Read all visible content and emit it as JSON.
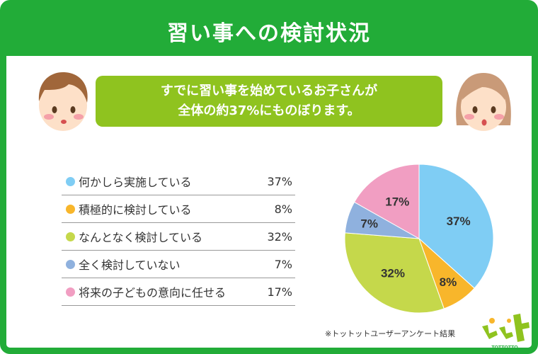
{
  "header": {
    "title": "習い事への検討状況"
  },
  "banner": {
    "line1": "すでに習い事を始めているお子さんが",
    "line2": "全体の約37%にものぼります。"
  },
  "chart_data": {
    "type": "pie",
    "title": "",
    "categories": [
      "何かしら実施している",
      "積極的に検討している",
      "なんとなく検討している",
      "全く検討していない",
      "将来の子どもの意向に任せる"
    ],
    "values": [
      37,
      8,
      32,
      7,
      17
    ],
    "value_labels": [
      "37%",
      "8%",
      "32%",
      "7%",
      "17%"
    ],
    "colors": [
      "#7fcdf4",
      "#f8b62b",
      "#c5d84b",
      "#8fb1de",
      "#f19ec2"
    ],
    "legend_placement": "left"
  },
  "note": "※トットットユーザーアンケート結果",
  "logo": {
    "text": "TOTTOTTO"
  }
}
